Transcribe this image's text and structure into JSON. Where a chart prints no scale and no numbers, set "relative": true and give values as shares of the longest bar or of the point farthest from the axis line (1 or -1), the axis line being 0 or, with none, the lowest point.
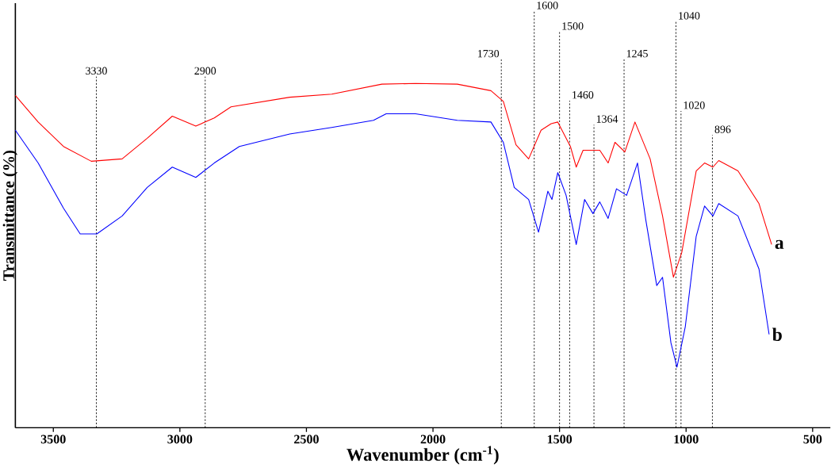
{
  "chart_data": {
    "type": "line",
    "xlabel": "Wavenumber (cm$^{-1}$)",
    "ylabel": "Transmittance (%)",
    "relative": true,
    "xlim": [
      3650,
      430
    ],
    "xticks": [
      3500,
      3000,
      2500,
      2000,
      1500,
      1000,
      500
    ],
    "x": [
      3650,
      3560,
      3460,
      3394,
      3350,
      3328,
      3228,
      3129,
      3030,
      2937,
      2864,
      2798,
      2765,
      2566,
      2400,
      2235,
      2202,
      2185,
      2069,
      1904,
      1771,
      1722,
      1679,
      1672,
      1622,
      1583,
      1573,
      1546,
      1533,
      1530,
      1507,
      1474,
      1457,
      1434,
      1407,
      1401,
      1368,
      1341,
      1308,
      1281,
      1275,
      1242,
      1235,
      1202,
      1192,
      1159,
      1142,
      1116,
      1093,
      1060,
      1050,
      1036,
      1017,
      1003,
      960,
      927,
      894,
      871,
      795,
      712,
      672,
      662
    ],
    "series": [
      {
        "name": "a",
        "color": "#ff0000",
        "values": [
          0.965,
          0.888,
          0.817,
          null,
          0.774,
          null,
          0.781,
          0.841,
          0.905,
          0.876,
          0.9,
          0.932,
          null,
          0.96,
          0.969,
          null,
          0.998,
          null,
          1.0,
          0.998,
          0.979,
          0.948,
          null,
          0.822,
          0.781,
          null,
          0.864,
          null,
          0.883,
          null,
          0.888,
          null,
          0.817,
          0.757,
          0.806,
          null,
          null,
          0.806,
          0.769,
          0.829,
          null,
          0.801,
          null,
          0.888,
          null,
          null,
          0.781,
          null,
          0.615,
          null,
          0.437,
          null,
          0.509,
          null,
          0.746,
          0.769,
          0.757,
          0.776,
          0.746,
          0.651,
          null,
          0.532
        ]
      },
      {
        "name": "b",
        "color": "#0000ff",
        "values": [
          0.864,
          0.769,
          0.638,
          0.563,
          null,
          0.563,
          0.615,
          0.698,
          0.757,
          0.727,
          0.769,
          null,
          0.817,
          0.853,
          0.872,
          0.893,
          null,
          0.912,
          0.912,
          0.893,
          0.888,
          0.829,
          0.698,
          null,
          0.663,
          0.568,
          null,
          0.687,
          null,
          0.663,
          0.741,
          0.675,
          null,
          0.532,
          null,
          0.663,
          0.622,
          0.656,
          0.608,
          null,
          0.694,
          null,
          0.675,
          null,
          0.769,
          0.603,
          null,
          0.413,
          0.437,
          0.247,
          null,
          0.176,
          null,
          0.294,
          0.556,
          0.644,
          0.615,
          0.651,
          0.615,
          0.461,
          0.271,
          null
        ]
      }
    ],
    "ref_lines": [
      {
        "axis": "x",
        "value": 3330,
        "label": "3330",
        "line_style": "dotted"
      },
      {
        "axis": "x",
        "value": 2900,
        "label": "2900",
        "line_style": "dotted"
      },
      {
        "axis": "x",
        "value": 1730,
        "label": "1730",
        "line_style": "dotted"
      },
      {
        "axis": "x",
        "value": 1600,
        "label": "1600",
        "line_style": "dotted"
      },
      {
        "axis": "x",
        "value": 1500,
        "label": "1500",
        "line_style": "dotted"
      },
      {
        "axis": "x",
        "value": 1460,
        "label": "1460",
        "line_style": "dotted"
      },
      {
        "axis": "x",
        "value": 1364,
        "label": "1364",
        "line_style": "dotted"
      },
      {
        "axis": "x",
        "value": 1245,
        "label": "1245",
        "line_style": "dotted"
      },
      {
        "axis": "x",
        "value": 1040,
        "label": "1040",
        "line_style": "dotted"
      },
      {
        "axis": "x",
        "value": 1020,
        "label": "1020",
        "line_style": "dotted"
      },
      {
        "axis": "x",
        "value": 896,
        "label": "896",
        "line_style": "dotted"
      }
    ],
    "grid": false,
    "marker": "none",
    "line_style": "solid"
  }
}
